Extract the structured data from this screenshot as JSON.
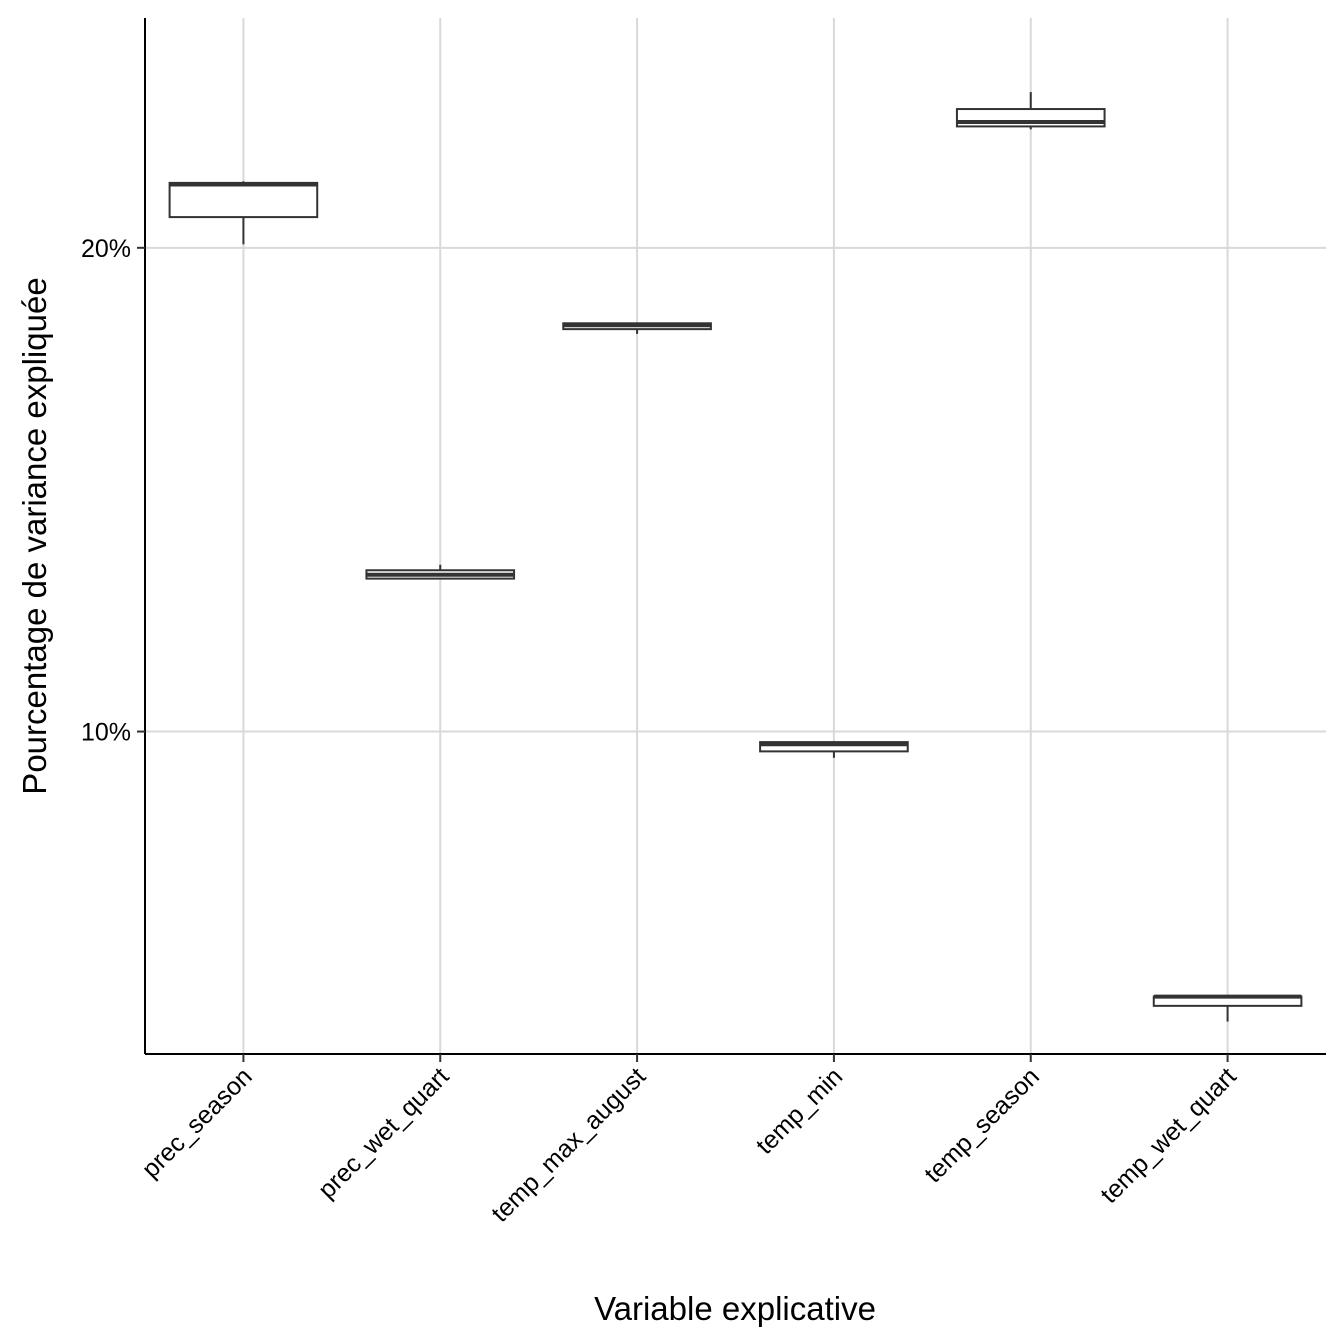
{
  "chart_data": {
    "type": "box",
    "xlabel": "Variable explicative",
    "ylabel": "Pourcentage de variance expliquée",
    "y_scale": "log",
    "ylim": [
      6.3,
      27.8
    ],
    "y_ticks": [
      {
        "value": 10,
        "label": "10%"
      },
      {
        "value": 20,
        "label": "20%"
      }
    ],
    "grid": true,
    "categories": [
      "prec_season",
      "prec_wet_quart",
      "temp_max_august",
      "temp_min",
      "temp_season",
      "temp_wet_quart"
    ],
    "boxes": [
      {
        "category": "prec_season",
        "min": 20.1,
        "q1": 20.9,
        "median": 21.9,
        "q3": 21.95,
        "max": 22.0
      },
      {
        "category": "prec_wet_quart",
        "min": 12.45,
        "q1": 12.45,
        "median": 12.52,
        "q3": 12.6,
        "max": 12.7
      },
      {
        "category": "temp_max_august",
        "min": 17.68,
        "q1": 17.8,
        "median": 17.9,
        "q3": 17.95,
        "max": 17.95
      },
      {
        "category": "temp_min",
        "min": 9.63,
        "q1": 9.72,
        "median": 9.82,
        "q3": 9.85,
        "max": 9.85
      },
      {
        "category": "temp_season",
        "min": 23.7,
        "q1": 23.8,
        "median": 23.95,
        "q3": 24.4,
        "max": 25.0
      },
      {
        "category": "temp_wet_quart",
        "min": 6.6,
        "q1": 6.75,
        "median": 6.84,
        "q3": 6.84,
        "max": 6.84
      }
    ],
    "colors": {
      "box_fill": "#ffffff",
      "box_stroke": "#333333",
      "grid": "#d9d9d9",
      "axis": "#000000"
    }
  }
}
